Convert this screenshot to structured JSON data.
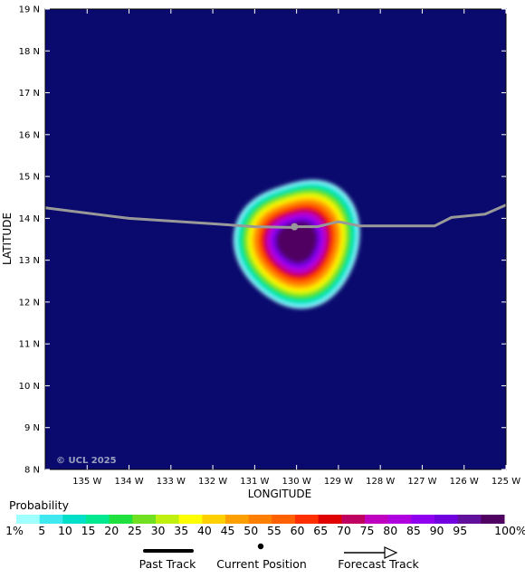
{
  "chart_data": {
    "type": "heatmap",
    "title": "",
    "xlabel": "LONGITUDE",
    "ylabel": "LATITUDE",
    "xlim": [
      -136,
      -125
    ],
    "ylim": [
      8,
      19
    ],
    "x_ticks": [
      -135,
      -134,
      -133,
      -132,
      -131,
      -130,
      -129,
      -128,
      -127,
      -126,
      -125
    ],
    "x_tick_labels": [
      "135 W",
      "134 W",
      "133 W",
      "132 W",
      "131 W",
      "130 W",
      "129 W",
      "128 W",
      "127 W",
      "126 W",
      "125 W"
    ],
    "y_ticks": [
      8,
      9,
      10,
      11,
      12,
      13,
      14,
      15,
      16,
      17,
      18,
      19
    ],
    "y_tick_labels": [
      "8 N",
      "9 N",
      "10 N",
      "11 N",
      "12 N",
      "13 N",
      "14 N",
      "15 N",
      "16 N",
      "17 N",
      "18 N",
      "19 N"
    ],
    "background_color": "#0a0a6e",
    "probability_field": {
      "center": [
        -130.0,
        13.45
      ],
      "max_probability": 100,
      "outer_extent_degrees": [
        2.85,
        3.2
      ]
    },
    "past_track": {
      "color": "#999999",
      "points": [
        [
          -136.0,
          14.25
        ],
        [
          -134.0,
          14.0
        ],
        [
          -132.0,
          13.87
        ],
        [
          -131.0,
          13.8
        ],
        [
          -130.0,
          13.78
        ]
      ]
    },
    "current_position": [
      -130.05,
      13.8
    ],
    "forecast_track": {
      "color": "#999999",
      "points": [
        [
          -130.05,
          13.8
        ],
        [
          -129.5,
          13.8
        ],
        [
          -129.0,
          13.92
        ],
        [
          -128.5,
          13.82
        ],
        [
          -126.7,
          13.82
        ],
        [
          -126.3,
          14.02
        ],
        [
          -125.5,
          14.1
        ],
        [
          -125.0,
          14.32
        ]
      ]
    },
    "copyright": "© UCL 2025"
  },
  "legend": {
    "title": "Probability",
    "labels": [
      "1%",
      "5",
      "10",
      "15",
      "20",
      "25",
      "30",
      "35",
      "40",
      "45",
      "50",
      "55",
      "60",
      "65",
      "70",
      "75",
      "80",
      "85",
      "90",
      "95",
      "100%"
    ],
    "colors": [
      "#a0ffff",
      "#40e8f0",
      "#00e0c8",
      "#00e890",
      "#20e040",
      "#70e020",
      "#c0f010",
      "#ffff00",
      "#ffd000",
      "#ffa000",
      "#ff8000",
      "#ff6000",
      "#ff3000",
      "#e00000",
      "#c00060",
      "#c000c0",
      "#b000e0",
      "#9000f0",
      "#7000e0",
      "#60109a",
      "#500060"
    ],
    "past_track_label": "Past Track",
    "current_position_label": "Current Position",
    "forecast_track_label": "Forecast Track"
  }
}
